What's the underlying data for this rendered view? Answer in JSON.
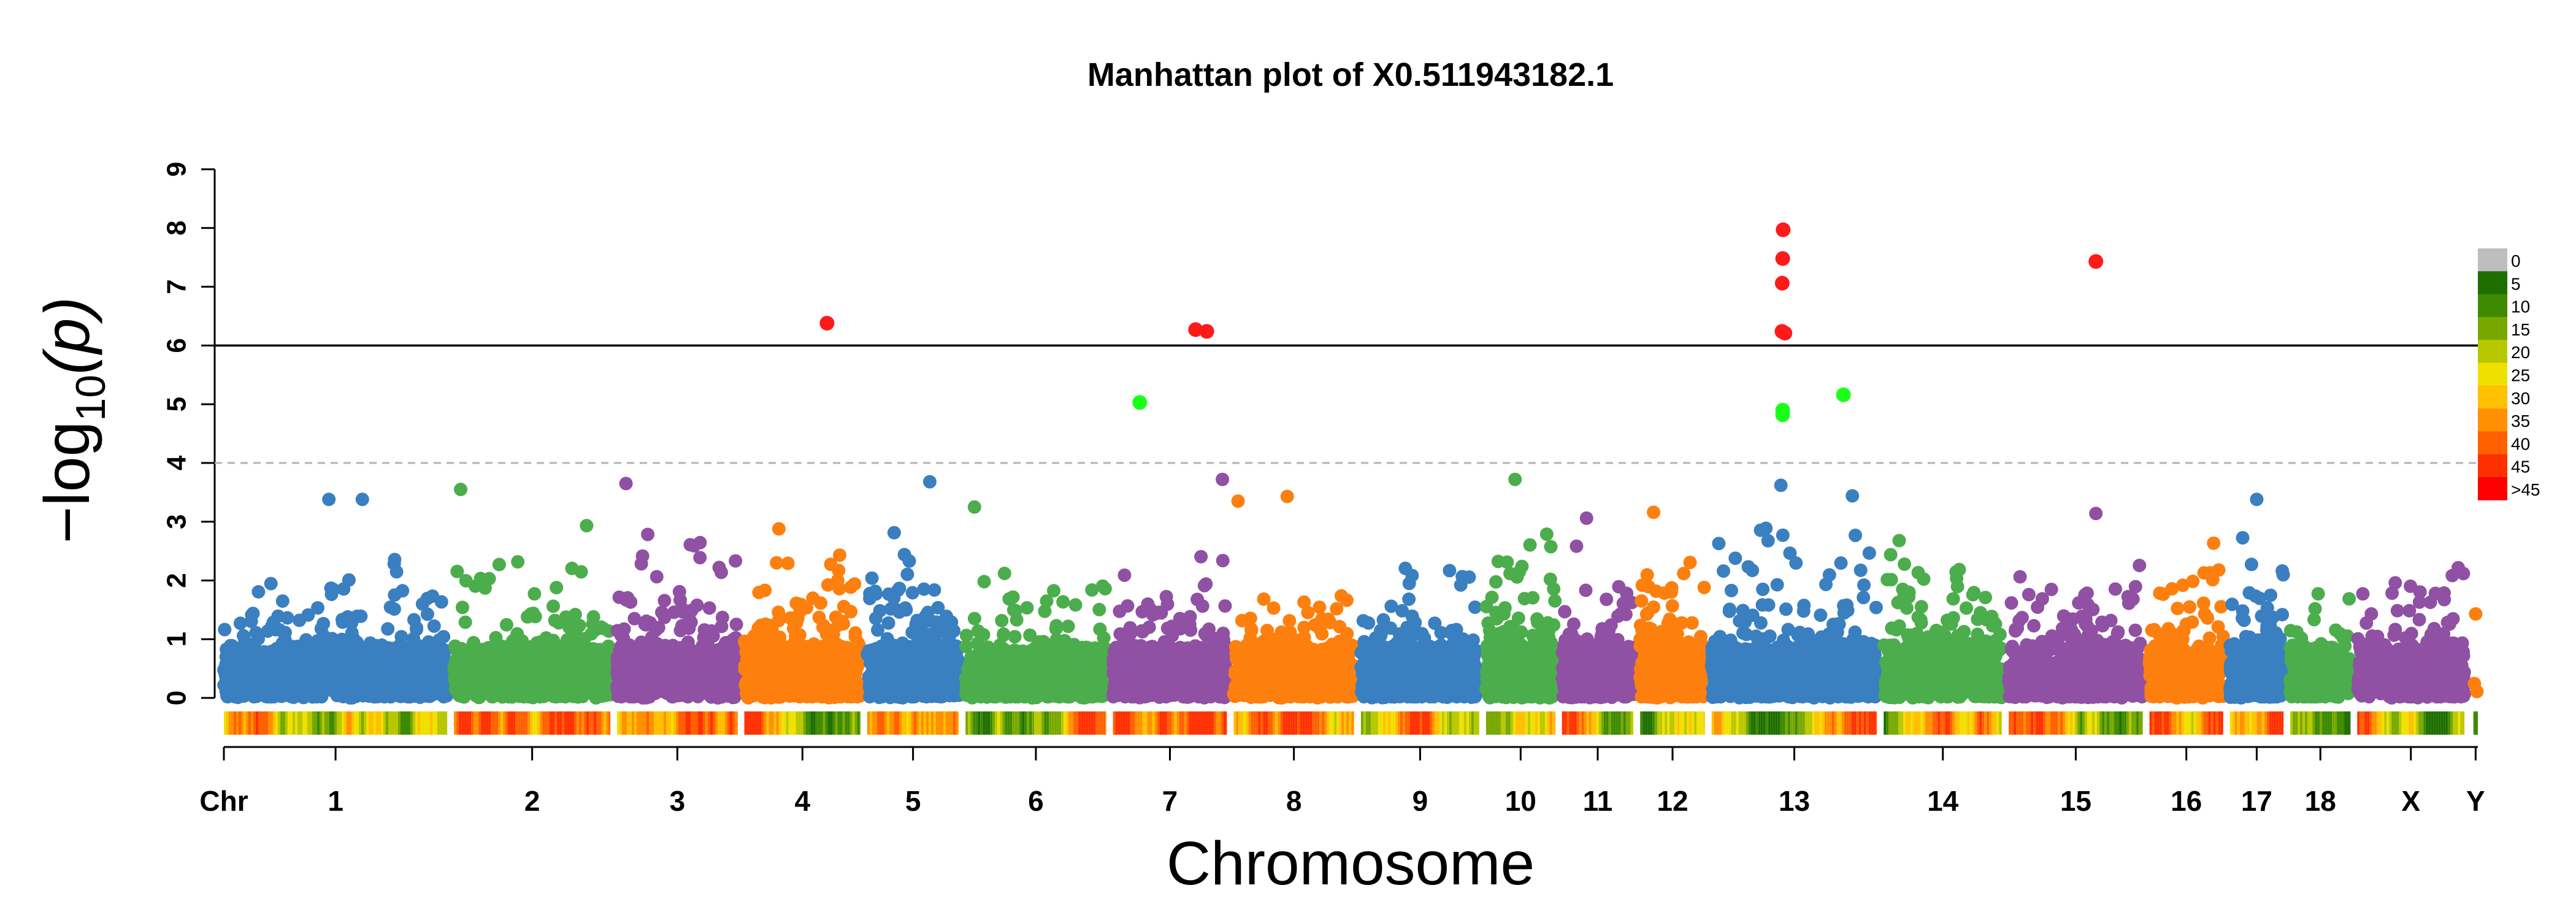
{
  "chart_data": {
    "type": "scatter",
    "subtype": "manhattan",
    "title": "Manhattan plot of X0.511943182.1",
    "xlabel": "Chromosome",
    "ylabel_parts": [
      "−log",
      "10",
      "(p)"
    ],
    "ylim": [
      0,
      9
    ],
    "y_ticks": [
      "0",
      "1",
      "2",
      "3",
      "4",
      "5",
      "6",
      "7",
      "8",
      "9"
    ],
    "chr_axis_label": "Chr",
    "genome_wide_threshold": 6,
    "suggestive_threshold": 4,
    "chromosomes": [
      {
        "name": "1",
        "start": 0,
        "end": 1000,
        "color": "#3a7fc0",
        "base_max": 2.6,
        "density": 520
      },
      {
        "name": "2",
        "start": 1030,
        "end": 1730,
        "color": "#4cad4c",
        "base_max": 3.0,
        "density": 320
      },
      {
        "name": "3",
        "start": 1760,
        "end": 2300,
        "color": "#9050a3",
        "base_max": 3.0,
        "density": 300
      },
      {
        "name": "4",
        "start": 2330,
        "end": 2850,
        "color": "#fd7f0e",
        "base_max": 2.9,
        "density": 380
      },
      {
        "name": "5",
        "start": 2880,
        "end": 3290,
        "color": "#3a7fc0",
        "base_max": 3.0,
        "density": 280
      },
      {
        "name": "6",
        "start": 3320,
        "end": 3950,
        "color": "#4cad4c",
        "base_max": 2.5,
        "density": 300
      },
      {
        "name": "7",
        "start": 3980,
        "end": 4490,
        "color": "#9050a3",
        "base_max": 2.6,
        "density": 300
      },
      {
        "name": "8",
        "start": 4520,
        "end": 5060,
        "color": "#fd7f0e",
        "base_max": 2.8,
        "density": 280
      },
      {
        "name": "9",
        "start": 5090,
        "end": 5620,
        "color": "#3a7fc0",
        "base_max": 2.3,
        "density": 280
      },
      {
        "name": "10",
        "start": 5650,
        "end": 5960,
        "color": "#4cad4c",
        "base_max": 3.0,
        "density": 240
      },
      {
        "name": "11",
        "start": 5990,
        "end": 6310,
        "color": "#9050a3",
        "base_max": 2.6,
        "density": 240
      },
      {
        "name": "12",
        "start": 6340,
        "end": 6630,
        "color": "#fd7f0e",
        "base_max": 2.9,
        "density": 220
      },
      {
        "name": "13",
        "start": 6660,
        "end": 7400,
        "color": "#3a7fc0",
        "base_max": 3.3,
        "density": 420
      },
      {
        "name": "14",
        "start": 7430,
        "end": 7960,
        "color": "#4cad4c",
        "base_max": 2.9,
        "density": 320
      },
      {
        "name": "15",
        "start": 7990,
        "end": 8590,
        "color": "#9050a3",
        "base_max": 2.4,
        "density": 300
      },
      {
        "name": "16",
        "start": 8620,
        "end": 8950,
        "color": "#fd7f0e",
        "base_max": 2.7,
        "density": 220
      },
      {
        "name": "17",
        "start": 8980,
        "end": 9220,
        "color": "#3a7fc0",
        "base_max": 2.8,
        "density": 180
      },
      {
        "name": "18",
        "start": 9250,
        "end": 9520,
        "color": "#4cad4c",
        "base_max": 2.1,
        "density": 180
      },
      {
        "name": "X",
        "start": 9550,
        "end": 10030,
        "color": "#9050a3",
        "base_max": 2.4,
        "density": 240
      },
      {
        "name": "Y",
        "start": 10070,
        "end": 10090,
        "color": "#fd7f0e",
        "base_max": 1.4,
        "density": 1
      }
    ],
    "highlighted_points": [
      {
        "chr": "4",
        "pos": 2700,
        "p": 6.38,
        "class": "significant"
      },
      {
        "chr": "7",
        "pos": 4350,
        "p": 6.27,
        "class": "significant"
      },
      {
        "chr": "7",
        "pos": 4400,
        "p": 6.24,
        "class": "significant"
      },
      {
        "chr": "13",
        "pos": 6980,
        "p": 7.97,
        "class": "significant"
      },
      {
        "chr": "13",
        "pos": 6978,
        "p": 7.48,
        "class": "significant"
      },
      {
        "chr": "13",
        "pos": 6976,
        "p": 7.06,
        "class": "significant"
      },
      {
        "chr": "13",
        "pos": 6975,
        "p": 6.24,
        "class": "significant"
      },
      {
        "chr": "13",
        "pos": 6988,
        "p": 6.21,
        "class": "significant"
      },
      {
        "chr": "15",
        "pos": 8380,
        "p": 7.43,
        "class": "significant"
      },
      {
        "chr": "7",
        "pos": 4100,
        "p": 5.03,
        "class": "suggestive"
      },
      {
        "chr": "13",
        "pos": 6978,
        "p": 4.9,
        "class": "suggestive"
      },
      {
        "chr": "13",
        "pos": 6978,
        "p": 4.82,
        "class": "suggestive"
      },
      {
        "chr": "13",
        "pos": 7250,
        "p": 5.16,
        "class": "suggestive"
      }
    ],
    "notable_points": [
      {
        "chr": "1",
        "pos": 470,
        "p": 3.38
      },
      {
        "chr": "1",
        "pos": 620,
        "p": 3.38
      },
      {
        "chr": "2",
        "pos": 1060,
        "p": 3.55
      },
      {
        "chr": "3",
        "pos": 1800,
        "p": 3.65
      },
      {
        "chr": "5",
        "pos": 3160,
        "p": 3.68
      },
      {
        "chr": "6",
        "pos": 3360,
        "p": 3.25
      },
      {
        "chr": "7",
        "pos": 4470,
        "p": 3.72
      },
      {
        "chr": "8",
        "pos": 4540,
        "p": 3.35
      },
      {
        "chr": "8",
        "pos": 4760,
        "p": 3.43
      },
      {
        "chr": "10",
        "pos": 5780,
        "p": 3.72
      },
      {
        "chr": "11",
        "pos": 6100,
        "p": 3.06
      },
      {
        "chr": "12",
        "pos": 6400,
        "p": 3.16
      },
      {
        "chr": "13",
        "pos": 6970,
        "p": 3.62
      },
      {
        "chr": "13",
        "pos": 7290,
        "p": 3.44
      },
      {
        "chr": "15",
        "pos": 8380,
        "p": 3.14
      },
      {
        "chr": "17",
        "pos": 9100,
        "p": 3.38
      },
      {
        "chr": "Y",
        "pos": 10080,
        "p": 1.43
      }
    ],
    "significant_color": "#ff1a1a",
    "suggestive_color": "#1aff1a",
    "density_legend": {
      "labels": [
        "0",
        "5",
        "10",
        "15",
        "20",
        "25",
        "30",
        "35",
        "40",
        "45",
        ">45"
      ],
      "colors": [
        "#bebebe",
        "#1f6e00",
        "#3d8a00",
        "#78a800",
        "#b8c800",
        "#f0e000",
        "#ffc000",
        "#ff9000",
        "#ff6000",
        "#ff3000",
        "#ff0000"
      ]
    },
    "density_bar_colors": [
      "#1f6e00",
      "#3d8a00",
      "#78a800",
      "#b8c800",
      "#f0e000",
      "#ffc000",
      "#ff9000",
      "#ff6000",
      "#ff3000"
    ]
  }
}
